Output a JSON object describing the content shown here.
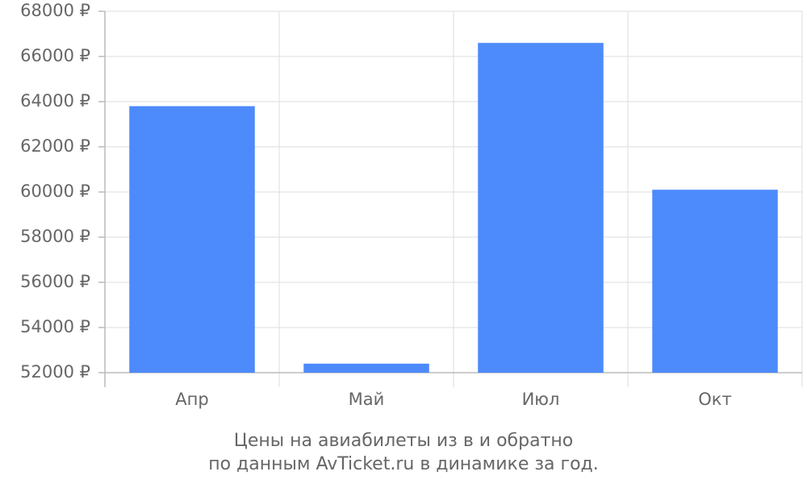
{
  "chart_data": {
    "type": "bar",
    "title": "Цены на авиабилеты из  в  и обратно",
    "subtitle": "по данным AvTicket.ru в динамике за год.",
    "categories": [
      "Апр",
      "Май",
      "Июл",
      "Окт"
    ],
    "values": [
      63800,
      52400,
      66600,
      60100
    ],
    "color": "#4d8afc",
    "ylim": [
      52000,
      68000
    ],
    "yticks": [
      {
        "value": 52000,
        "label": "52000 ₽"
      },
      {
        "value": 54000,
        "label": "54000 ₽"
      },
      {
        "value": 56000,
        "label": "56000 ₽"
      },
      {
        "value": 58000,
        "label": "58000 ₽"
      },
      {
        "value": 60000,
        "label": "60000 ₽"
      },
      {
        "value": 62000,
        "label": "62000 ₽"
      },
      {
        "value": 64000,
        "label": "64000 ₽"
      },
      {
        "value": 66000,
        "label": "66000 ₽"
      },
      {
        "value": 68000,
        "label": "68000 ₽"
      }
    ],
    "grid": true
  }
}
